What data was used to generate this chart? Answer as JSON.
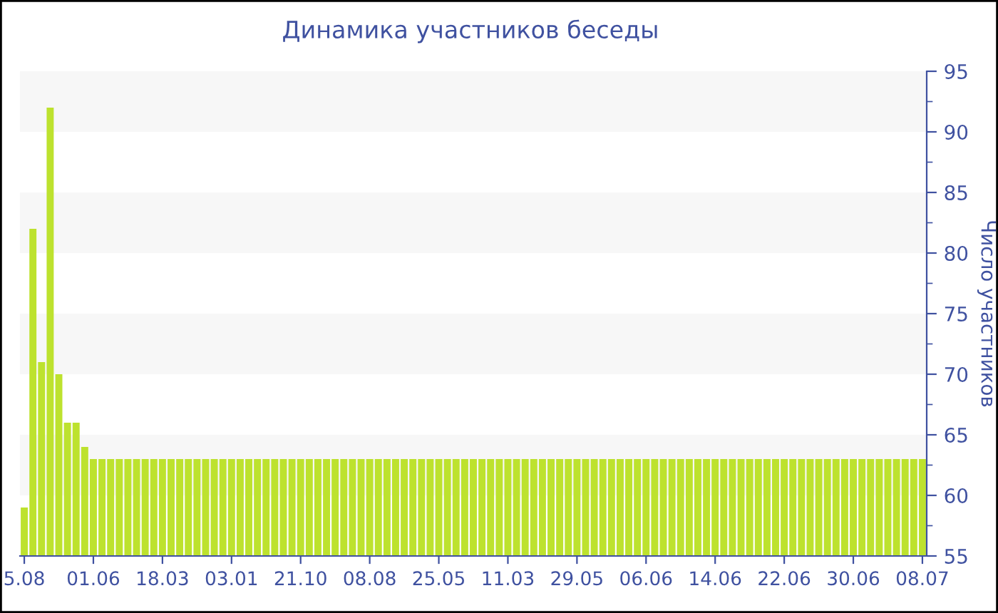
{
  "chart_data": {
    "type": "bar",
    "title": "Динамика участников беседы",
    "ylabel": "Число участников",
    "categories": [
      "5.08",
      null,
      null,
      null,
      null,
      null,
      null,
      null,
      "01.06",
      null,
      null,
      null,
      null,
      null,
      null,
      null,
      "18.03",
      null,
      null,
      null,
      null,
      null,
      null,
      null,
      "03.01",
      null,
      null,
      null,
      null,
      null,
      null,
      null,
      "21.10",
      null,
      null,
      null,
      null,
      null,
      null,
      null,
      "08.08",
      null,
      null,
      null,
      null,
      null,
      null,
      null,
      "25.05",
      null,
      null,
      null,
      null,
      null,
      null,
      null,
      "11.03",
      null,
      null,
      null,
      null,
      null,
      null,
      null,
      "29.05",
      null,
      null,
      null,
      null,
      null,
      null,
      null,
      "06.06",
      null,
      null,
      null,
      null,
      null,
      null,
      null,
      "14.06",
      null,
      null,
      null,
      null,
      null,
      null,
      null,
      "22.06",
      null,
      null,
      null,
      null,
      null,
      null,
      null,
      "30.06",
      null,
      null,
      null,
      null,
      null,
      null,
      null,
      "08.07"
    ],
    "values": [
      59,
      82,
      71,
      92,
      70,
      66,
      66,
      64,
      63,
      63,
      63,
      63,
      63,
      63,
      63,
      63,
      63,
      63,
      63,
      63,
      63,
      63,
      63,
      63,
      63,
      63,
      63,
      63,
      63,
      63,
      63,
      63,
      63,
      63,
      63,
      63,
      63,
      63,
      63,
      63,
      63,
      63,
      63,
      63,
      63,
      63,
      63,
      63,
      63,
      63,
      63,
      63,
      63,
      63,
      63,
      63,
      63,
      63,
      63,
      63,
      63,
      63,
      63,
      63,
      63,
      63,
      63,
      63,
      63,
      63,
      63,
      63,
      63,
      63,
      63,
      63,
      63,
      63,
      63,
      63,
      63,
      63,
      63,
      63,
      63,
      63,
      63,
      63,
      63,
      63,
      63,
      63,
      63,
      63,
      63,
      63,
      63,
      63,
      63,
      63,
      63,
      63,
      63,
      63,
      63
    ],
    "color": "#bde22e",
    "ylim": [
      55,
      95
    ],
    "yticks": [
      55,
      60,
      65,
      70,
      75,
      80,
      85,
      90,
      95
    ],
    "grid": false,
    "bands": [
      {
        "axis": "y",
        "from": 60,
        "to": 65,
        "color": "#f7f7f7"
      },
      {
        "axis": "y",
        "from": 70,
        "to": 75,
        "color": "#f7f7f7"
      },
      {
        "axis": "y",
        "from": 80,
        "to": 85,
        "color": "#f7f7f7"
      },
      {
        "axis": "y",
        "from": 90,
        "to": 95,
        "color": "#f7f7f7"
      }
    ]
  }
}
